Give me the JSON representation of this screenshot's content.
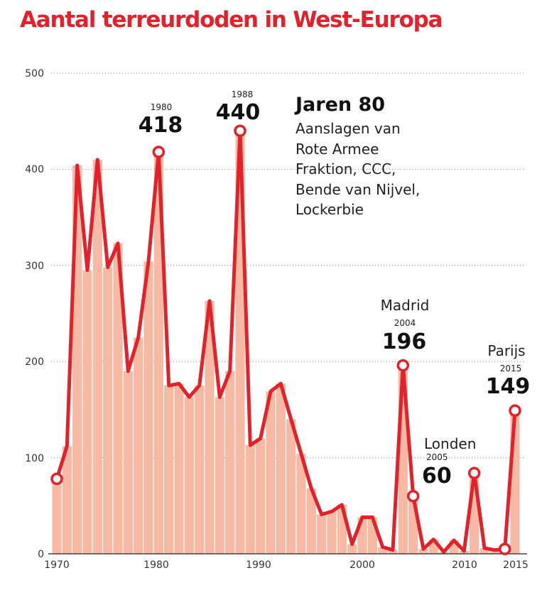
{
  "colors": {
    "accent": "#e3212b",
    "bar": "#f6b9a3",
    "grid": "#888888",
    "marker_fill": "#ffffff"
  },
  "chart_data": {
    "type": "area",
    "title": "Aantal terreurdoden in West-Europa",
    "xlabel": "",
    "ylabel": "",
    "xlim": [
      1970,
      2015
    ],
    "ylim": [
      0,
      500
    ],
    "x_ticks": [
      "1970",
      "1980",
      "1990",
      "2000",
      "2010",
      "2015"
    ],
    "y_ticks": [
      "0",
      "100",
      "200",
      "300",
      "400",
      "500"
    ],
    "grid": "horizontal dotted",
    "series": [
      {
        "name": "Aantal terreurdoden",
        "x": [
          1970,
          1971,
          1972,
          1973,
          1974,
          1975,
          1976,
          1977,
          1978,
          1979,
          1980,
          1981,
          1982,
          1983,
          1984,
          1985,
          1986,
          1987,
          1988,
          1989,
          1990,
          1991,
          1992,
          1993,
          1994,
          1995,
          1996,
          1997,
          1998,
          1999,
          2000,
          2001,
          2002,
          2003,
          2004,
          2005,
          2006,
          2007,
          2008,
          2009,
          2010,
          2011,
          2012,
          2013,
          2014,
          2015
        ],
        "values": [
          78,
          112,
          404,
          295,
          410,
          298,
          323,
          190,
          225,
          304,
          418,
          175,
          177,
          163,
          175,
          263,
          163,
          190,
          440,
          113,
          120,
          169,
          177,
          140,
          104,
          68,
          41,
          44,
          51,
          10,
          38,
          38,
          7,
          4,
          196,
          60,
          5,
          15,
          2,
          14,
          3,
          84,
          6,
          4,
          5,
          149
        ]
      }
    ],
    "annotations": [
      {
        "year": "1980",
        "value": "418"
      },
      {
        "year": "1988",
        "value": "440"
      },
      {
        "label": "Madrid",
        "year": "2004",
        "value": "196"
      },
      {
        "label": "Londen",
        "year": "2005",
        "value": "60"
      },
      {
        "label": "Parijs",
        "year": "2015",
        "value": "149"
      }
    ],
    "callout": {
      "title": "Jaren 80",
      "lines": [
        "Aanslagen van",
        "Rote Armee",
        "Fraktion, CCC,",
        "Bende van Nijvel,",
        "Lockerbie"
      ]
    }
  }
}
